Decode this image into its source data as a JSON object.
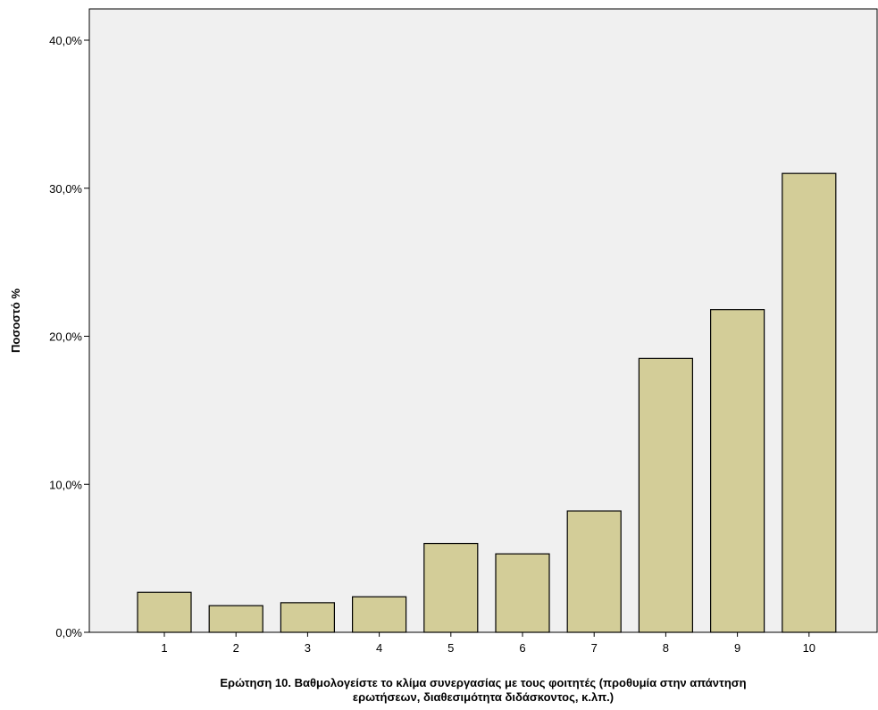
{
  "chart_data": {
    "type": "bar",
    "categories": [
      "1",
      "2",
      "3",
      "4",
      "5",
      "6",
      "7",
      "8",
      "9",
      "10"
    ],
    "values": [
      2.7,
      1.8,
      2.0,
      2.4,
      6.0,
      5.3,
      8.2,
      18.5,
      21.8,
      31.0
    ],
    "ylabel": "Ποσοστό %",
    "xlabel_lines": [
      "Ερώτηση 10. Βαθμολογείστε το κλίμα συνεργασίας με τους φοιτητές (προθυμία στην απάντηση",
      "ερωτήσεων, διαθεσιμότητα διδάσκοντος, κ.λπ.)"
    ],
    "ylim": [
      0,
      40
    ],
    "yticks": [
      0,
      10,
      20,
      30,
      40
    ],
    "ytick_labels": [
      "0,0%",
      "10,0%",
      "20,0%",
      "30,0%",
      "40,0%"
    ],
    "grid": false,
    "colors": {
      "bar_fill": "#d3cd98",
      "bar_stroke": "#000000",
      "plot_background": "#f0f0f0"
    }
  }
}
